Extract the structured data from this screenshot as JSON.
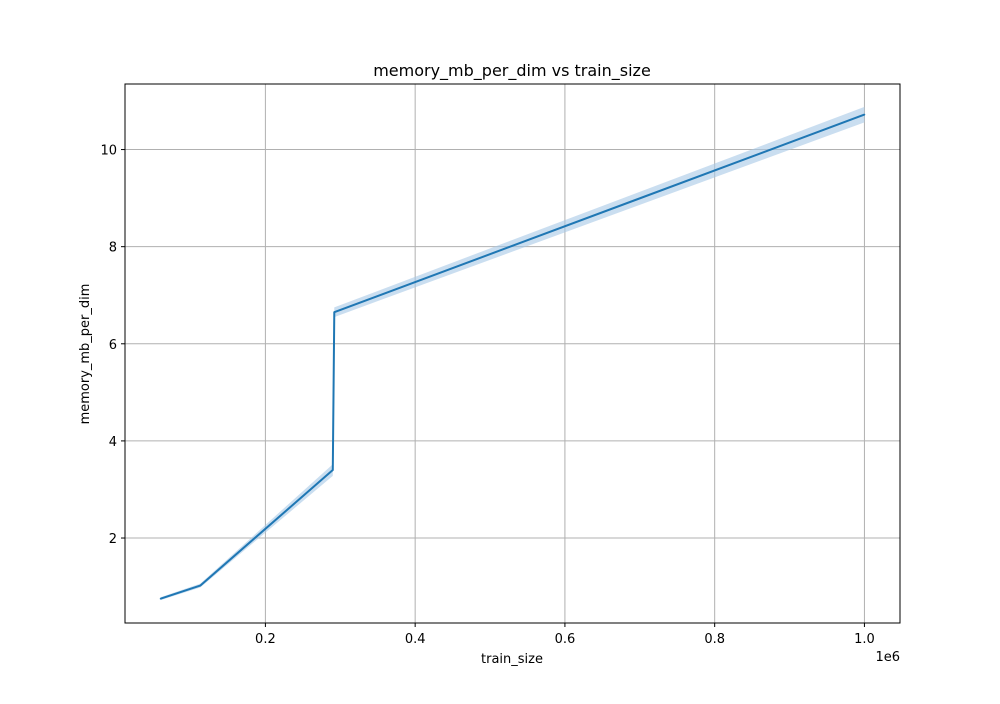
{
  "chart_data": {
    "type": "line",
    "title": "memory_mb_per_dim vs train_size",
    "xlabel": "train_size",
    "ylabel": "memory_mb_per_dim",
    "x_offset_label": "1e6",
    "xlim": [
      0.0125,
      1.0475
    ],
    "ylim": [
      0.25,
      11.35
    ],
    "xticks": [
      0.2,
      0.4,
      0.6,
      0.8,
      1.0
    ],
    "xtick_labels": [
      "0.2",
      "0.4",
      "0.6",
      "0.8",
      "1.0"
    ],
    "yticks": [
      2,
      4,
      6,
      8,
      10
    ],
    "ytick_labels": [
      "2",
      "4",
      "6",
      "8",
      "10"
    ],
    "grid": true,
    "colors": {
      "line": "#1f77b4",
      "band": "#a6c8e6",
      "grid": "#b0b0b0",
      "axes": "#000000"
    },
    "series": [
      {
        "x": [
          0.06,
          0.113,
          0.29,
          0.292,
          1.0
        ],
        "y": [
          0.75,
          1.02,
          3.4,
          6.65,
          10.72
        ],
        "ci_lower": [
          0.72,
          0.98,
          3.28,
          6.55,
          10.56
        ],
        "ci_upper": [
          0.78,
          1.06,
          3.52,
          6.75,
          10.88
        ]
      }
    ]
  }
}
